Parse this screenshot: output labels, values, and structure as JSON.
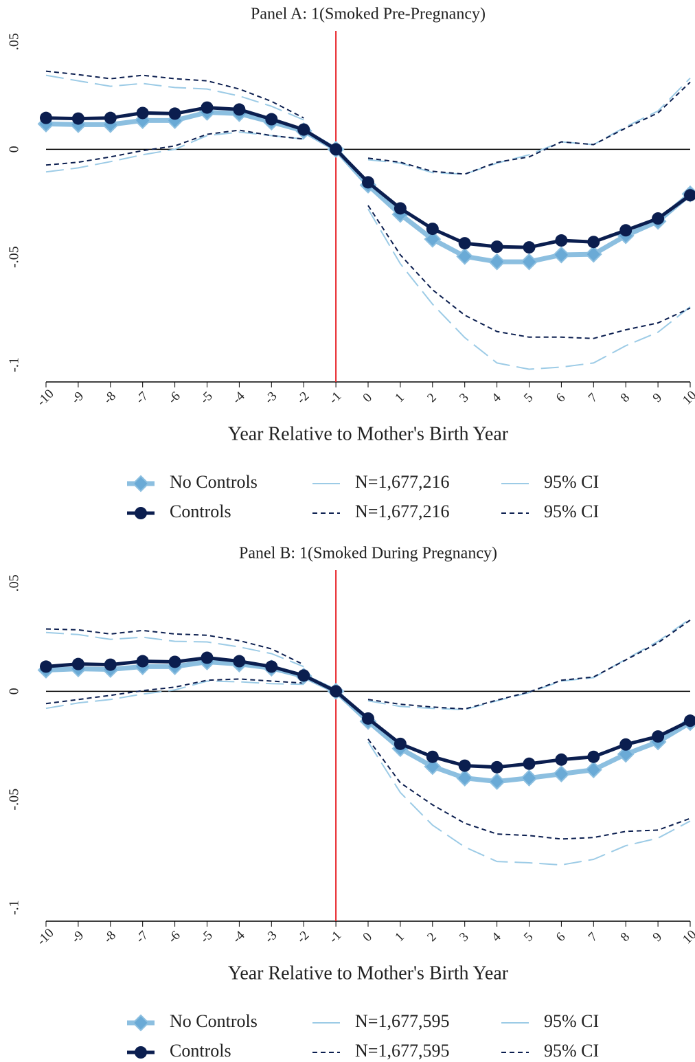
{
  "chart_data": [
    {
      "type": "line",
      "title": "Panel A: 1(Smoked Pre-Pregnancy)",
      "x_label": "Year Relative to Mother's Birth Year",
      "x": [
        -10,
        -9,
        -8,
        -7,
        -6,
        -5,
        -4,
        -3,
        -2,
        -1,
        0,
        1,
        2,
        3,
        4,
        5,
        6,
        7,
        8,
        9,
        10
      ],
      "xlim": [
        -10,
        10
      ],
      "xticks": [
        -10,
        -9,
        -8,
        -7,
        -6,
        -5,
        -4,
        -3,
        -2,
        -1,
        0,
        1,
        2,
        3,
        4,
        5,
        6,
        7,
        8,
        9,
        10
      ],
      "ylim": [
        -0.108,
        0.055
      ],
      "yticks": [
        {
          "value": 0.05,
          "label": ".05"
        },
        0,
        {
          "value": -0.05,
          "label": "-.05"
        },
        {
          "value": -0.1,
          "label": "-.1"
        }
      ],
      "xline": -1,
      "xline_color": "#e8262b",
      "yline": 0,
      "yline_color": "#000000",
      "series": [
        {
          "name": "No Controls",
          "color": "#8cbfe0",
          "marker": "diamond",
          "marker_color": "#6aaad6",
          "width": 7,
          "dash": "solid",
          "values": [
            0.0118,
            0.0115,
            0.0115,
            0.0134,
            0.0134,
            0.0172,
            0.0166,
            0.0127,
            0.0086,
            0,
            -0.0166,
            -0.0302,
            -0.0417,
            -0.0497,
            -0.0522,
            -0.0522,
            -0.049,
            -0.0487,
            -0.0401,
            -0.0334,
            -0.0207
          ]
        },
        {
          "name": "Controls",
          "color": "#0b1e4f",
          "marker": "circle",
          "marker_color": "#0b1e4f",
          "width": 5,
          "dash": "solid",
          "values": [
            0.0146,
            0.0143,
            0.0146,
            0.0169,
            0.0166,
            0.0194,
            0.0185,
            0.014,
            0.0092,
            0,
            -0.0153,
            -0.0274,
            -0.0369,
            -0.0436,
            -0.0452,
            -0.0455,
            -0.0423,
            -0.043,
            -0.0376,
            -0.0321,
            -0.0213
          ]
        },
        {
          "name": "N=1,677,216",
          "color": "#9ccbe6",
          "width": 2,
          "dash": "long",
          "values": [
            0.0344,
            0.0318,
            0.0293,
            0.0306,
            0.0287,
            0.028,
            0.0248,
            0.02,
            0.0137,
            null,
            -0.0048,
            -0.0064,
            -0.0108,
            -0.0115,
            -0.0064,
            -0.0025,
            0.0035,
            0.0022,
            0.0105,
            0.0178,
            0.0331
          ]
        },
        {
          "name": "N=1,677,216",
          "color": "#0b1e4f",
          "width": 2,
          "dash": "short",
          "values": [
            0.0363,
            0.0347,
            0.0328,
            0.0344,
            0.0328,
            0.0318,
            0.028,
            0.0223,
            0.0146,
            null,
            -0.0041,
            -0.006,
            -0.0102,
            -0.0115,
            -0.006,
            -0.0035,
            0.0035,
            0.0022,
            0.0099,
            0.0169,
            0.0312
          ]
        },
        {
          "name": "95% CI",
          "color": "#9ccbe6",
          "width": 2,
          "dash": "long",
          "values": [
            -0.0105,
            -0.0086,
            -0.0057,
            -0.0025,
            0,
            0.0064,
            0.008,
            0.0064,
            0.0048,
            null,
            -0.0277,
            -0.0531,
            -0.0719,
            -0.0874,
            -0.0992,
            -0.1021,
            -0.1011,
            -0.0992,
            -0.0912,
            -0.0849,
            -0.0731
          ]
        },
        {
          "name": "95% CI",
          "color": "#0b1e4f",
          "width": 2,
          "dash": "short",
          "values": [
            -0.0073,
            -0.006,
            -0.0035,
            -0.0006,
            0.0016,
            0.007,
            0.0089,
            0.0064,
            0.0048,
            null,
            -0.0261,
            -0.049,
            -0.0652,
            -0.077,
            -0.0846,
            -0.0872,
            -0.0872,
            -0.0878,
            -0.0838,
            -0.0806,
            -0.0737
          ]
        }
      ]
    },
    {
      "type": "line",
      "title": "Panel B: 1(Smoked During Pregnancy)",
      "x_label": "Year Relative to Mother's Birth Year",
      "x": [
        -10,
        -9,
        -8,
        -7,
        -6,
        -5,
        -4,
        -3,
        -2,
        -1,
        0,
        1,
        2,
        3,
        4,
        5,
        6,
        7,
        8,
        9,
        10
      ],
      "xlim": [
        -10,
        10
      ],
      "xticks": [
        -10,
        -9,
        -8,
        -7,
        -6,
        -5,
        -4,
        -3,
        -2,
        -1,
        0,
        1,
        2,
        3,
        4,
        5,
        6,
        7,
        8,
        9,
        10
      ],
      "ylim": [
        -0.1063,
        0.056
      ],
      "yticks": [
        {
          "value": 0.05,
          "label": ".05"
        },
        0,
        {
          "value": -0.05,
          "label": "-.05"
        },
        {
          "value": -0.1,
          "label": "-.1"
        }
      ],
      "xline": -1,
      "xline_color": "#e8262b",
      "yline": 0,
      "yline_color": "#000000",
      "series": [
        {
          "name": "No Controls",
          "color": "#8cbfe0",
          "marker": "diamond",
          "marker_color": "#6aaad6",
          "width": 7,
          "dash": "solid",
          "values": [
            0.0098,
            0.0104,
            0.0101,
            0.0114,
            0.0114,
            0.0136,
            0.0126,
            0.0107,
            0.007,
            0,
            -0.0139,
            -0.0265,
            -0.0348,
            -0.0401,
            -0.0417,
            -0.0401,
            -0.0382,
            -0.0363,
            -0.0291,
            -0.0234,
            -0.0145
          ]
        },
        {
          "name": "Controls",
          "color": "#0b1e4f",
          "marker": "circle",
          "marker_color": "#0b1e4f",
          "width": 5,
          "dash": "solid",
          "values": [
            0.0114,
            0.0126,
            0.0123,
            0.0139,
            0.0136,
            0.0155,
            0.0139,
            0.0114,
            0.0073,
            0,
            -0.0126,
            -0.0243,
            -0.0303,
            -0.0344,
            -0.0351,
            -0.0335,
            -0.0316,
            -0.0303,
            -0.0246,
            -0.0209,
            -0.0136
          ]
        },
        {
          "name": "N=1,677,595",
          "color": "#9ccbe6",
          "width": 2,
          "dash": "long",
          "values": [
            0.0272,
            0.0262,
            0.024,
            0.025,
            0.0231,
            0.0228,
            0.0205,
            0.0174,
            0.0114,
            null,
            -0.0044,
            -0.007,
            -0.0079,
            -0.0085,
            -0.0044,
            -0.0006,
            0.0047,
            0.0063,
            0.0148,
            0.0231,
            0.0335
          ]
        },
        {
          "name": "N=1,677,595",
          "color": "#0b1e4f",
          "width": 2,
          "dash": "short",
          "values": [
            0.0288,
            0.0284,
            0.0265,
            0.0281,
            0.0265,
            0.0259,
            0.0234,
            0.0196,
            0.0123,
            null,
            -0.0038,
            -0.006,
            -0.0073,
            -0.0082,
            -0.0041,
            -0.0003,
            0.0051,
            0.0066,
            0.0145,
            0.0224,
            0.0329
          ]
        },
        {
          "name": "95% CI",
          "color": "#9ccbe6",
          "width": 2,
          "dash": "long",
          "values": [
            -0.0079,
            -0.0054,
            -0.0038,
            -0.0013,
            0.0006,
            0.0047,
            0.0044,
            0.0035,
            0.0032,
            null,
            -0.0234,
            -0.0468,
            -0.0619,
            -0.072,
            -0.0787,
            -0.0793,
            -0.0803,
            -0.0777,
            -0.0714,
            -0.0679,
            -0.06
          ]
        },
        {
          "name": "95% CI",
          "color": "#0b1e4f",
          "width": 2,
          "dash": "short",
          "values": [
            -0.0057,
            -0.0038,
            -0.0019,
            0.0003,
            0.0019,
            0.0051,
            0.0057,
            0.0047,
            0.0038,
            null,
            -0.0221,
            -0.0423,
            -0.0525,
            -0.061,
            -0.066,
            -0.0667,
            -0.0683,
            -0.0676,
            -0.0648,
            -0.0642,
            -0.0588
          ]
        }
      ]
    }
  ]
}
